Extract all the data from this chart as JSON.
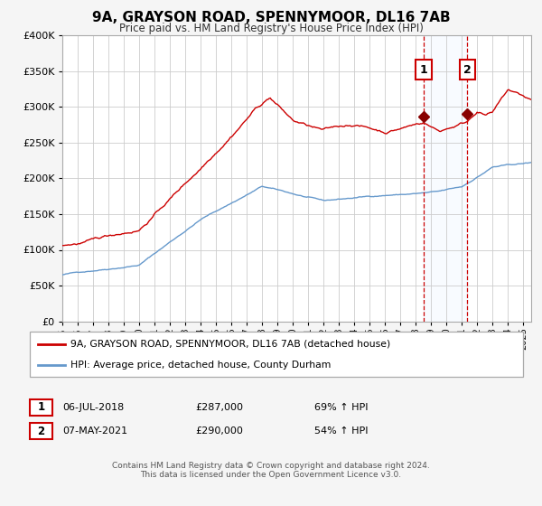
{
  "title": "9A, GRAYSON ROAD, SPENNYMOOR, DL16 7AB",
  "subtitle": "Price paid vs. HM Land Registry's House Price Index (HPI)",
  "legend_line1": "9A, GRAYSON ROAD, SPENNYMOOR, DL16 7AB (detached house)",
  "legend_line2": "HPI: Average price, detached house, County Durham",
  "annotation1_label": "1",
  "annotation1_date": "06-JUL-2018",
  "annotation1_price": "£287,000",
  "annotation1_hpi": "69% ↑ HPI",
  "annotation1_year": 2018.52,
  "annotation1_value": 287000,
  "annotation2_label": "2",
  "annotation2_date": "07-MAY-2021",
  "annotation2_price": "£290,000",
  "annotation2_hpi": "54% ↑ HPI",
  "annotation2_year": 2021.35,
  "annotation2_value": 290000,
  "footer_line1": "Contains HM Land Registry data © Crown copyright and database right 2024.",
  "footer_line2": "This data is licensed under the Open Government Licence v3.0.",
  "red_line_color": "#cc0000",
  "blue_line_color": "#6699cc",
  "bg_color": "#f5f5f5",
  "plot_bg_color": "#ffffff",
  "grid_color": "#cccccc",
  "highlight_color": "#ddeeff",
  "dashed_line_color": "#cc0000",
  "marker_color": "#880000",
  "box_color": "#cc0000",
  "ylim": [
    0,
    400000
  ],
  "yticks": [
    0,
    50000,
    100000,
    150000,
    200000,
    250000,
    300000,
    350000,
    400000
  ],
  "xlim_start": 1995.0,
  "xlim_end": 2025.5
}
